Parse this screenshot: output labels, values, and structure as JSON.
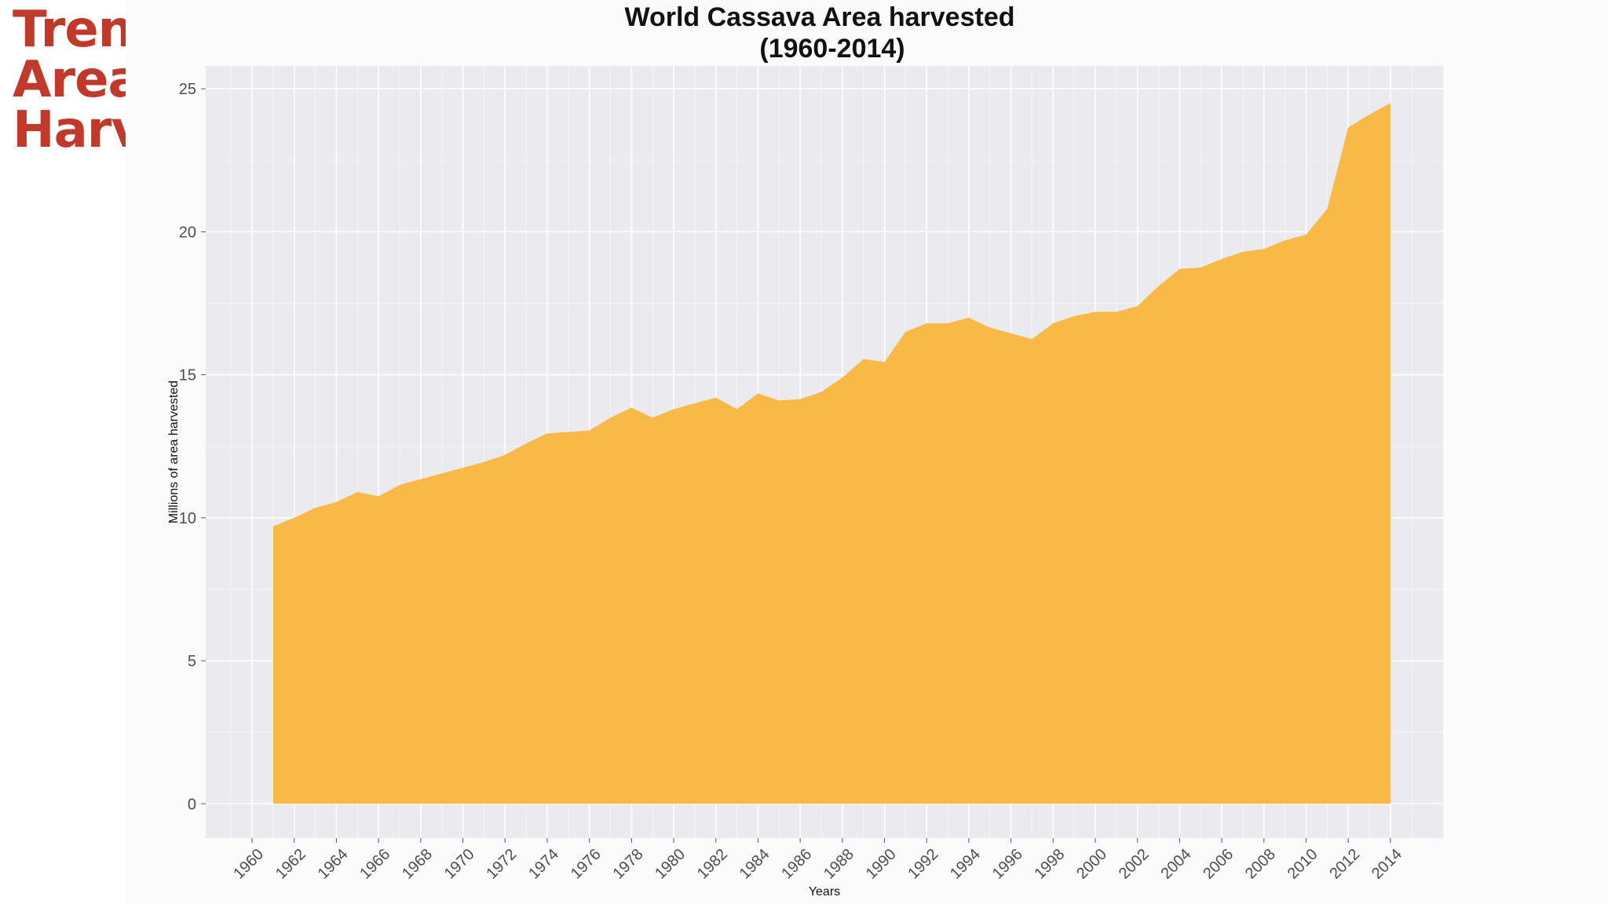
{
  "slide": {
    "title_lines": [
      "Trends:",
      "Area",
      "Harvest"
    ],
    "title_color": "#c0392b"
  },
  "chart_data": {
    "type": "area",
    "title": "World Cassava Area harvested",
    "subtitle": "(1960-2014)",
    "xlabel": "Years",
    "ylabel": "Millions of area harvested",
    "xlim": [
      1957.8,
      2016.5
    ],
    "ylim": [
      -1.2,
      25.8
    ],
    "x_ticks": [
      1960,
      1962,
      1964,
      1966,
      1968,
      1970,
      1972,
      1974,
      1976,
      1978,
      1980,
      1982,
      1984,
      1986,
      1988,
      1990,
      1992,
      1994,
      1996,
      1998,
      2000,
      2002,
      2004,
      2006,
      2008,
      2010,
      2012,
      2014
    ],
    "y_ticks": [
      0,
      5,
      10,
      15,
      20,
      25
    ],
    "fill_color": "#f9b947",
    "panel_color": "#ebeaee",
    "grid": true,
    "series": [
      {
        "name": "Area harvested",
        "x": [
          1961,
          1962,
          1963,
          1964,
          1965,
          1966,
          1967,
          1968,
          1969,
          1970,
          1971,
          1972,
          1973,
          1974,
          1975,
          1976,
          1977,
          1978,
          1979,
          1980,
          1981,
          1982,
          1983,
          1984,
          1985,
          1986,
          1987,
          1988,
          1989,
          1990,
          1991,
          1992,
          1993,
          1994,
          1995,
          1996,
          1997,
          1998,
          1999,
          2000,
          2001,
          2002,
          2003,
          2004,
          2005,
          2006,
          2007,
          2008,
          2009,
          2010,
          2011,
          2012,
          2013,
          2014
        ],
        "values": [
          9.7,
          10.0,
          10.35,
          10.55,
          10.9,
          10.75,
          11.15,
          11.35,
          11.55,
          11.75,
          11.95,
          12.2,
          12.6,
          12.95,
          13.0,
          13.05,
          13.5,
          13.85,
          13.5,
          13.8,
          14.0,
          14.2,
          13.8,
          14.35,
          14.1,
          14.15,
          14.4,
          14.9,
          15.55,
          15.45,
          16.5,
          16.8,
          16.8,
          17.0,
          16.65,
          16.45,
          16.25,
          16.8,
          17.05,
          17.2,
          17.2,
          17.4,
          18.1,
          18.7,
          18.75,
          19.05,
          19.3,
          19.4,
          19.7,
          19.9,
          20.8,
          23.65,
          24.1,
          24.5
        ]
      }
    ]
  }
}
